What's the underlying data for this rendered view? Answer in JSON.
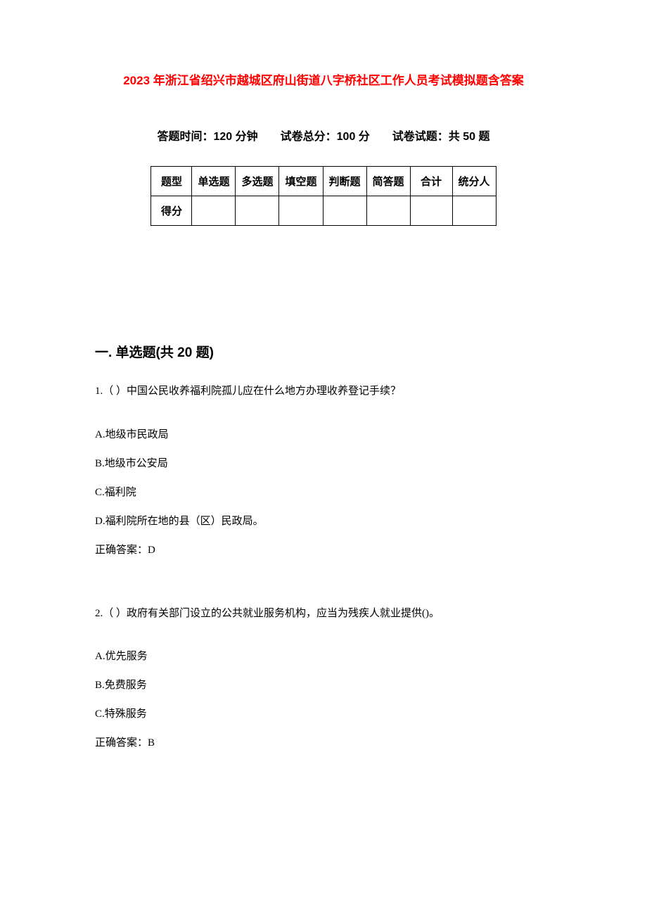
{
  "title": "2023 年浙江省绍兴市越城区府山街道八字桥社区工作人员考试模拟题含答案",
  "subtitle": "答题时间：120 分钟　　试卷总分：100 分　　试卷试题：共 50 题",
  "title_color": "#ff0000",
  "title_fontsize": 17,
  "subtitle_fontsize": 16,
  "body_fontsize": 15,
  "section_fontsize": 19,
  "background_color": "#ffffff",
  "text_color": "#000000",
  "border_color": "#000000",
  "score_table": {
    "row1": {
      "label": "题型",
      "cells": [
        "单选题",
        "多选题",
        "填空题",
        "判断题",
        "简答题",
        "合计",
        "统分人"
      ]
    },
    "row2": {
      "label": "得分",
      "cells": [
        "",
        "",
        "",
        "",
        "",
        "",
        ""
      ]
    }
  },
  "section_heading": "一. 单选题(共 20 题)",
  "questions": [
    {
      "number": "1.（ ）中国公民收养福利院孤儿应在什么地方办理收养登记手续？",
      "options": [
        "A.地级市民政局",
        "B.地级市公安局",
        "C.福利院",
        "D.福利院所在地的县（区）民政局。"
      ],
      "answer": "正确答案：D"
    },
    {
      "number": "2.（ ）政府有关部门设立的公共就业服务机构，应当为残疾人就业提供()。",
      "options": [
        "A.优先服务",
        "B.免费服务",
        "C.特殊服务"
      ],
      "answer": "正确答案：B"
    }
  ]
}
